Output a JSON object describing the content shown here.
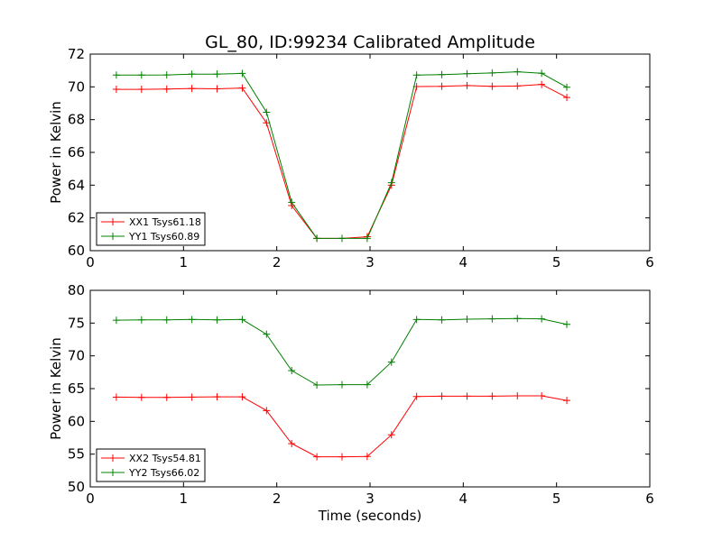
{
  "chart_data": [
    {
      "type": "line",
      "title": "GL_80, ID:99234 Calibrated Amplitude",
      "xlabel": "",
      "ylabel": "Power in Kelvin",
      "xlim": [
        0,
        6
      ],
      "ylim": [
        60,
        72
      ],
      "xticks": [
        "0",
        "1",
        "2",
        "3",
        "4",
        "5",
        "6"
      ],
      "yticks": [
        "60",
        "62",
        "64",
        "66",
        "68",
        "70",
        "72"
      ],
      "legend_position": "lower-left",
      "x": [
        0.28,
        0.55,
        0.82,
        1.09,
        1.36,
        1.63,
        1.89,
        2.16,
        2.43,
        2.7,
        2.97,
        3.23,
        3.5,
        3.77,
        4.04,
        4.31,
        4.58,
        4.84,
        5.11
      ],
      "series": [
        {
          "name": "XX1 Tsys61.18",
          "color": "#ff0000",
          "values": [
            69.85,
            69.85,
            69.87,
            69.9,
            69.88,
            69.93,
            67.8,
            62.75,
            60.75,
            60.75,
            60.85,
            64.0,
            70.02,
            70.03,
            70.08,
            70.03,
            70.05,
            70.15,
            69.35
          ]
        },
        {
          "name": "YY1 Tsys60.89",
          "color": "#008000",
          "values": [
            70.72,
            70.72,
            70.73,
            70.78,
            70.78,
            70.82,
            68.45,
            62.95,
            60.75,
            60.75,
            60.75,
            64.15,
            70.72,
            70.75,
            70.8,
            70.85,
            70.92,
            70.83,
            69.98
          ]
        }
      ]
    },
    {
      "type": "line",
      "title": "",
      "xlabel": "Time (seconds)",
      "ylabel": "Power in Kelvin",
      "xlim": [
        0,
        6
      ],
      "ylim": [
        50,
        80
      ],
      "xticks": [
        "0",
        "1",
        "2",
        "3",
        "4",
        "5",
        "6"
      ],
      "yticks": [
        "50",
        "55",
        "60",
        "65",
        "70",
        "75",
        "80"
      ],
      "legend_position": "lower-left",
      "x": [
        0.28,
        0.55,
        0.82,
        1.09,
        1.36,
        1.63,
        1.89,
        2.16,
        2.43,
        2.7,
        2.97,
        3.23,
        3.5,
        3.77,
        4.04,
        4.31,
        4.58,
        4.84,
        5.11
      ],
      "series": [
        {
          "name": "XX2 Tsys54.81",
          "color": "#ff0000",
          "values": [
            63.7,
            63.65,
            63.65,
            63.7,
            63.75,
            63.75,
            61.65,
            56.6,
            54.6,
            54.6,
            54.65,
            57.95,
            63.8,
            63.85,
            63.85,
            63.85,
            63.9,
            63.9,
            63.2
          ]
        },
        {
          "name": "YY2 Tsys66.02",
          "color": "#008000",
          "values": [
            75.45,
            75.5,
            75.5,
            75.55,
            75.5,
            75.55,
            73.3,
            67.75,
            65.55,
            65.6,
            65.6,
            69.05,
            75.55,
            75.5,
            75.6,
            75.65,
            75.7,
            75.65,
            74.8
          ]
        }
      ]
    }
  ]
}
